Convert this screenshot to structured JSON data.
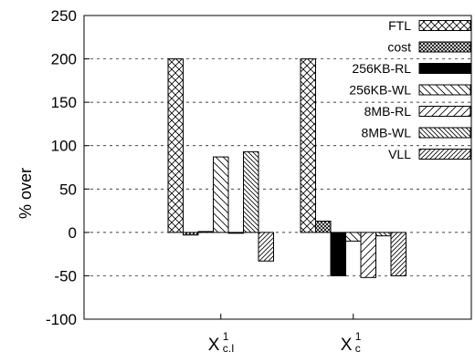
{
  "chart_data": {
    "type": "bar",
    "title": "",
    "xlabel": "",
    "ylabel": "% over",
    "ylim": [
      -100,
      250
    ],
    "yticks": [
      -100,
      -50,
      0,
      50,
      100,
      150,
      200,
      250
    ],
    "grid": "horizontal dashed",
    "legend_position": "top-right",
    "categories": [
      {
        "base": "X",
        "sup": "1",
        "sub": "c,I"
      },
      {
        "base": "X",
        "sup": "1",
        "sub": "c"
      }
    ],
    "series": [
      {
        "name": "FTL",
        "pattern": "crosshatch",
        "values": [
          200,
          200
        ]
      },
      {
        "name": "cost",
        "pattern": "dense-crosshatch",
        "values": [
          -3,
          13
        ]
      },
      {
        "name": "256KB-RL",
        "pattern": "solid",
        "values": [
          1,
          -50
        ]
      },
      {
        "name": "256KB-WL",
        "pattern": "backslash",
        "values": [
          87,
          -10
        ]
      },
      {
        "name": "8MB-RL",
        "pattern": "slash",
        "values": [
          -1,
          -52
        ]
      },
      {
        "name": "8MB-WL",
        "pattern": "dense-backslash",
        "values": [
          93,
          -4
        ]
      },
      {
        "name": "VLL",
        "pattern": "dense-slash",
        "values": [
          -33,
          -50
        ]
      }
    ]
  }
}
